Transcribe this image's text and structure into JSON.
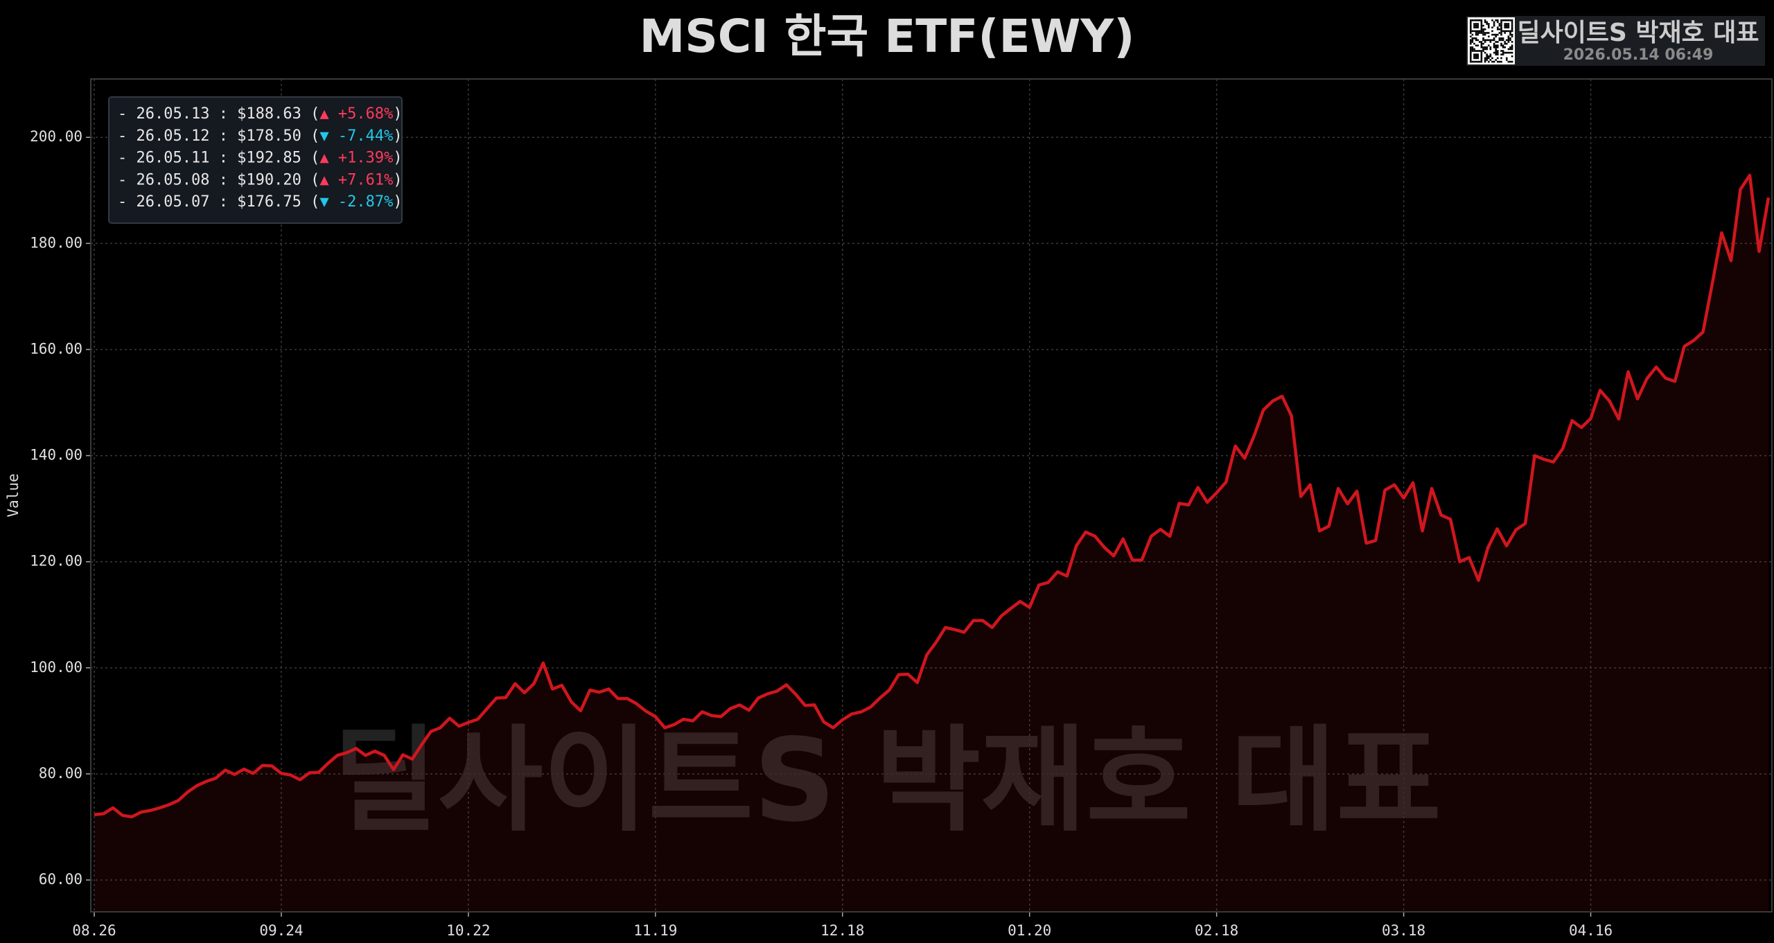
{
  "chart_data": {
    "type": "line",
    "title": "MSCI 한국 ETF(EWY)",
    "y_label": "Value",
    "watermark": "딜사이트S 박재호 대표",
    "badge": {
      "title": "딜사이트S 박재호 대표",
      "timestamp": "2026.05.14 06:49"
    },
    "legend": [
      {
        "text": "- 26.05.13 : $188.63 (",
        "change": "▲ +5.68%",
        "end": ")",
        "color": "#ff3a5c"
      },
      {
        "text": "- 26.05.12 : $178.50 (",
        "change": "▼ -7.44%",
        "end": ")",
        "color": "#22c8e8"
      },
      {
        "text": "- 26.05.11 : $192.85 (",
        "change": "▲ +1.39%",
        "end": ")",
        "color": "#ff3a5c"
      },
      {
        "text": "- 26.05.08 : $190.20 (",
        "change": "▲ +7.61%",
        "end": ")",
        "color": "#ff3a5c"
      },
      {
        "text": "- 26.05.07 : $176.75 (",
        "change": "▼ -2.87%",
        "end": ")",
        "color": "#22c8e8"
      }
    ],
    "categories": [
      "08.26",
      null,
      null,
      null,
      null,
      null,
      null,
      null,
      null,
      null,
      null,
      null,
      null,
      null,
      null,
      null,
      null,
      null,
      null,
      null,
      "09.24",
      null,
      null,
      null,
      null,
      null,
      null,
      null,
      null,
      null,
      null,
      null,
      null,
      null,
      null,
      null,
      null,
      null,
      null,
      null,
      "10.22",
      null,
      null,
      null,
      null,
      null,
      null,
      null,
      null,
      null,
      null,
      null,
      null,
      null,
      null,
      null,
      null,
      null,
      null,
      null,
      "11.19",
      null,
      null,
      null,
      null,
      null,
      null,
      null,
      null,
      null,
      null,
      null,
      null,
      null,
      null,
      null,
      null,
      null,
      null,
      null,
      "12.18",
      null,
      null,
      null,
      null,
      null,
      null,
      null,
      null,
      null,
      null,
      null,
      null,
      null,
      null,
      null,
      null,
      null,
      null,
      null,
      "01.20",
      null,
      null,
      null,
      null,
      null,
      null,
      null,
      null,
      null,
      null,
      null,
      null,
      null,
      null,
      null,
      null,
      null,
      null,
      null,
      "02.18",
      null,
      null,
      null,
      null,
      null,
      null,
      null,
      null,
      null,
      null,
      null,
      null,
      null,
      null,
      null,
      null,
      null,
      null,
      null,
      "03.18",
      null,
      null,
      null,
      null,
      null,
      null,
      null,
      null,
      null,
      null,
      null,
      null,
      null,
      null,
      null,
      null,
      null,
      null,
      null,
      "04.16",
      null,
      null,
      null,
      null,
      null,
      null,
      null,
      null,
      null,
      null,
      null,
      null,
      null,
      null,
      null,
      null,
      null,
      null,
      null
    ],
    "series": [
      {
        "color": "#d0161e",
        "values": [
          72.3,
          72.5,
          73.6,
          72.2,
          71.9,
          72.8,
          73.1,
          73.6,
          74.2,
          75,
          76.6,
          77.8,
          78.6,
          79.2,
          80.7,
          79.9,
          80.9,
          80.1,
          81.6,
          81.5,
          80.1,
          79.8,
          78.9,
          80.2,
          80.3,
          82,
          83.5,
          84,
          84.8,
          83.5,
          84.3,
          83.5,
          80.8,
          83.6,
          82.8,
          85.5,
          88,
          88.7,
          90.5,
          89,
          89.7,
          90.3,
          92.3,
          94.3,
          94.4,
          97,
          95.3,
          97,
          100.9,
          96,
          96.7,
          93.6,
          91.9,
          95.8,
          95.4,
          96,
          94.2,
          94.2,
          93.2,
          91.8,
          90.8,
          88.7,
          89.3,
          90.3,
          90,
          91.7,
          91,
          90.8,
          92.3,
          93,
          92,
          94.3,
          95.1,
          95.6,
          96.8,
          95,
          92.9,
          93,
          89.8,
          88.7,
          90.2,
          91.3,
          91.7,
          92.6,
          94.3,
          95.8,
          98.7,
          98.8,
          97.2,
          102.4,
          104.8,
          107.6,
          107.2,
          106.7,
          108.9,
          108.9,
          107.6,
          109.8,
          111.2,
          112.5,
          111.4,
          115.6,
          116.1,
          118.1,
          117.3,
          123,
          125.6,
          124.8,
          122.7,
          121.1,
          124.3,
          120.3,
          120.3,
          124.8,
          126.1,
          124.8,
          131,
          130.7,
          134,
          131.2,
          133,
          135,
          141.8,
          139.5,
          143.7,
          148.6,
          150.3,
          151.2,
          147.5,
          132.3,
          134.5,
          125.8,
          126.7,
          133.8,
          130.9,
          133.3,
          123.5,
          124,
          133.5,
          134.5,
          132,
          134.9,
          125.8,
          133.8,
          128.8,
          128,
          120,
          120.8,
          116.5,
          122.6,
          126.2,
          123,
          126,
          127.2,
          140,
          139.3,
          138.8,
          141.3,
          146.6,
          145.3,
          147,
          152.3,
          150.3,
          146.9,
          155.8,
          150.7,
          154.5,
          156.7,
          154.6,
          154,
          160.6,
          161.7,
          163.3,
          172.5,
          182,
          176.75,
          190.2,
          192.85,
          178.5,
          188.63
        ]
      }
    ],
    "ylim": [
      54,
      211
    ],
    "yticks": [
      {
        "value": 60,
        "label": "60.00"
      },
      {
        "value": 80,
        "label": "80.00"
      },
      {
        "value": 100,
        "label": "100.00"
      },
      {
        "value": 120,
        "label": "120.00"
      },
      {
        "value": 140,
        "label": "140.00"
      },
      {
        "value": 160,
        "label": "160.00"
      },
      {
        "value": 180,
        "label": "180.00"
      },
      {
        "value": 200,
        "label": "200.00"
      }
    ],
    "grid": true
  }
}
